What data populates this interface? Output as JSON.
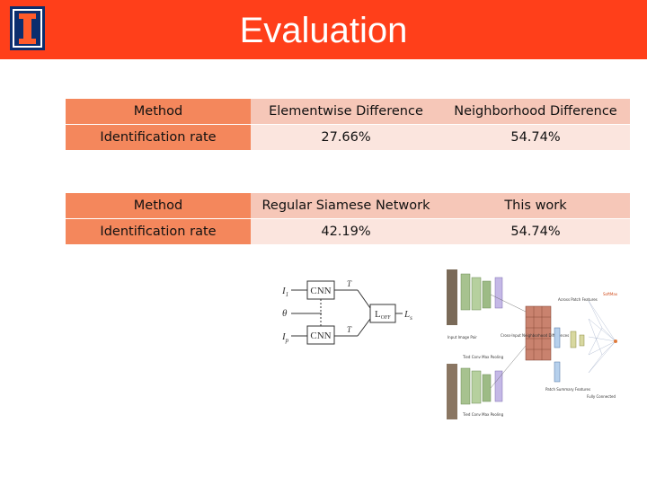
{
  "header": {
    "title": "Evaluation",
    "logo_icon": "university-logo-icon",
    "accent": "#ff3f1a"
  },
  "table1": {
    "header": [
      "Method",
      "Elementwise Difference",
      "Neighborhood Difference"
    ],
    "row": [
      "Identification rate",
      "27.66%",
      "54.74%"
    ]
  },
  "table2": {
    "header": [
      "Method",
      "Regular Siamese Network",
      "This work"
    ],
    "row": [
      "Identification rate",
      "42.19%",
      "54.74%"
    ]
  },
  "siamese_diagram": {
    "in_top": "I",
    "in_top_sub": "1",
    "in_mid": "θ",
    "in_bot": "I",
    "in_bot_sub": "p",
    "net_top": "CNN",
    "net_bot": "CNN",
    "feat_top": "T",
    "feat_bot": "T",
    "loss": "L",
    "loss_sub": "OFF",
    "out": "L",
    "out_sub": "s"
  },
  "network_diagram": {
    "labels": [
      "Input Image Pair",
      "Tied Conv Max Pooling",
      "Tied Conv Max Pooling",
      "Cross-Input Neighborhood Differences",
      "Patch Summary Features",
      "Across Patch Features",
      "Fully Connected",
      "SoftMax"
    ]
  }
}
